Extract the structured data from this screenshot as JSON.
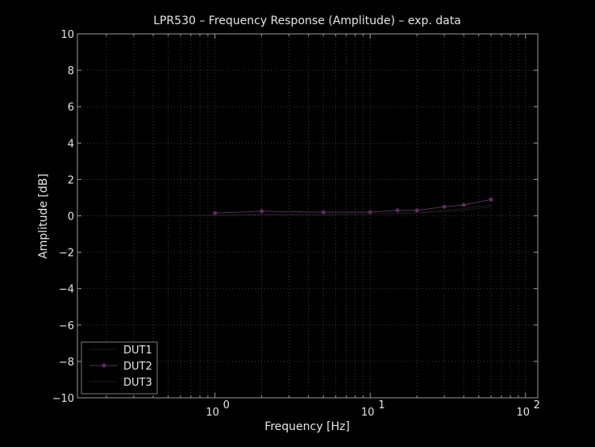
{
  "chart_data": {
    "type": "line",
    "title": "LPR530 – Frequency Response (Amplitude) – exp. data",
    "xlabel": "Frequency [Hz]",
    "ylabel": "Amplitude [dB]",
    "xscale": "log",
    "xlim": [
      0.13,
      120
    ],
    "ylim": [
      -10,
      10
    ],
    "yticks": [
      "10",
      "8",
      "6",
      "4",
      "2",
      "0",
      "−2",
      "−4",
      "−6",
      "−8",
      "−10"
    ],
    "xticks": [
      {
        "base": "10",
        "exp": "0",
        "value": 1
      },
      {
        "base": "10",
        "exp": "1",
        "value": 10
      },
      {
        "base": "10",
        "exp": "2",
        "value": 100
      }
    ],
    "grid": true,
    "legend_position": "bottom-left",
    "background": "#000000",
    "series": [
      {
        "name": "DUT1",
        "color": "#1a1a1a",
        "marker": "none",
        "x": [
          0.2,
          0.5,
          1,
          2,
          5,
          10,
          15,
          20,
          30,
          40,
          60
        ],
        "y": [
          0,
          0,
          0.05,
          0.1,
          0.1,
          0.1,
          0.15,
          0.2,
          0.3,
          0.4,
          0.6
        ]
      },
      {
        "name": "DUT2",
        "color": "#5a2f5a",
        "marker": "circle",
        "x": [
          1,
          2,
          5,
          10,
          15,
          20,
          30,
          40,
          60
        ],
        "y": [
          0.15,
          0.25,
          0.2,
          0.2,
          0.3,
          0.3,
          0.5,
          0.6,
          0.9
        ]
      },
      {
        "name": "DUT3",
        "color": "#1a1a1a",
        "marker": "none",
        "x": [
          0.2,
          0.5,
          1,
          2,
          5,
          10,
          20,
          40,
          60
        ],
        "y": [
          0,
          0,
          0,
          0.05,
          0.05,
          0.1,
          0.15,
          0.3,
          0.5
        ]
      }
    ]
  }
}
